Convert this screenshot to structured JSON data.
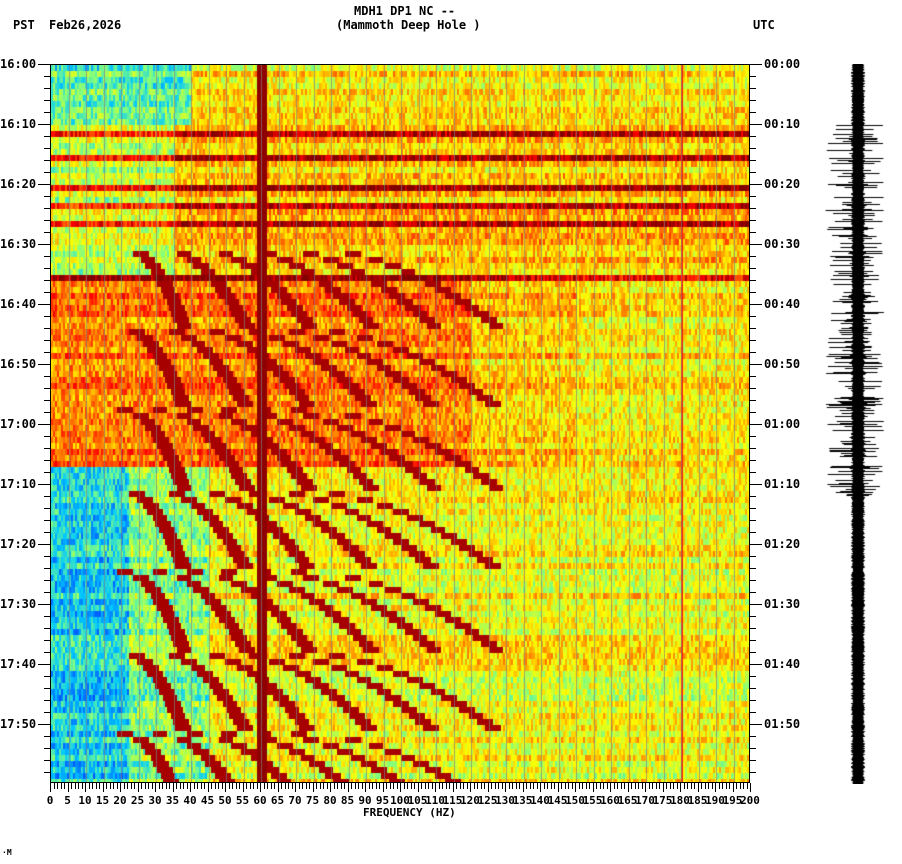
{
  "header": {
    "title_line1": "MDH1 DP1 NC --",
    "title_line2": "(Mammoth Deep Hole )",
    "left_tz": "PST",
    "date": "Feb26,2026",
    "right_tz": "UTC"
  },
  "footer_mark": "·M",
  "chart_data": {
    "type": "heatmap",
    "title": "MDH1 DP1 NC -- (Mammoth Deep Hole )",
    "subtitle": "Feb26,2026",
    "xlabel": "FREQUENCY (HZ)",
    "ylabel_left": "PST",
    "ylabel_right": "UTC",
    "xlim": [
      0,
      200
    ],
    "x_ticks": [
      0,
      5,
      10,
      15,
      20,
      25,
      30,
      35,
      40,
      45,
      50,
      55,
      60,
      65,
      70,
      75,
      80,
      85,
      90,
      95,
      100,
      105,
      110,
      115,
      120,
      125,
      130,
      135,
      140,
      145,
      150,
      155,
      160,
      165,
      170,
      175,
      180,
      185,
      190,
      195,
      200
    ],
    "x_tick_labels": [
      "0",
      "5",
      "10",
      "15",
      "20",
      "25",
      "30",
      "35",
      "40",
      "45",
      "50",
      "55",
      "60",
      "65",
      "70",
      "75",
      "80",
      "85",
      "90",
      "95",
      "100",
      "105",
      "110",
      "115",
      "120",
      "125",
      "130",
      "135",
      "140",
      "145",
      "150",
      "155",
      "160",
      "165",
      "170",
      "175",
      "180",
      "185",
      "190",
      "195",
      "200"
    ],
    "y_ticks_left": [
      "16:00",
      "16:10",
      "16:20",
      "16:30",
      "16:40",
      "16:50",
      "17:00",
      "17:10",
      "17:20",
      "17:30",
      "17:40",
      "17:50"
    ],
    "y_ticks_right": [
      "00:00",
      "00:10",
      "00:20",
      "00:30",
      "00:40",
      "00:50",
      "01:00",
      "01:10",
      "01:20",
      "01:30",
      "01:40",
      "01:50"
    ],
    "time_range_minutes": [
      0,
      120
    ],
    "colormap": [
      "#0050ff",
      "#00c8ff",
      "#80ff80",
      "#ffff00",
      "#ff8000",
      "#ff0000",
      "#800000"
    ],
    "features": {
      "persistent_line_hz": 60,
      "secondary_line_hz": 180,
      "harmonic_sweeps_start_min": 30,
      "quiet_low_freq_after_min": 67,
      "broadband_bursts_min": [
        11,
        15,
        20,
        23,
        26,
        35
      ]
    },
    "seismogram_panel": {
      "position": "right",
      "high_amplitude_window_minutes": [
        10,
        72
      ]
    }
  }
}
